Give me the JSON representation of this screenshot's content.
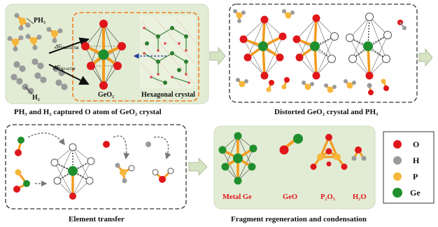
{
  "panels": {
    "p1": {
      "caption": "PH₃ and H₂ captured O atom of GeO₂ crystal",
      "molecule_ph3": "PH₃",
      "molecule_h2": "H₂",
      "center_label": "GeO₂",
      "crystal_label": "Hexagonal crystal",
      "gibbs_top": "△G",
      "gibbs_top_sub": "PH3-1173K",
      "gibbs_bottom": "△G",
      "gibbs_bottom_sub": "H2-1173K"
    },
    "p2": {
      "caption": "Distorted GeO₂ crystal and PH₃"
    },
    "p3": {
      "caption": "Element transfer"
    },
    "p4": {
      "caption": "Fragment regeneration and condensation",
      "products": [
        "Metal Ge",
        "GeO",
        "P₂O₅",
        "H₂O"
      ]
    }
  },
  "legend": {
    "items": [
      {
        "symbol": "O",
        "color": "#e0161b"
      },
      {
        "symbol": "H",
        "color": "#9a9a9a"
      },
      {
        "symbol": "P",
        "color": "#f6b73c"
      },
      {
        "symbol": "Ge",
        "color": "#1f8f2e"
      }
    ]
  },
  "colors": {
    "panel_green": "#e2ecd4",
    "bond_orange": "#f39a1c",
    "arrow_fill": "#d7e4c3"
  }
}
